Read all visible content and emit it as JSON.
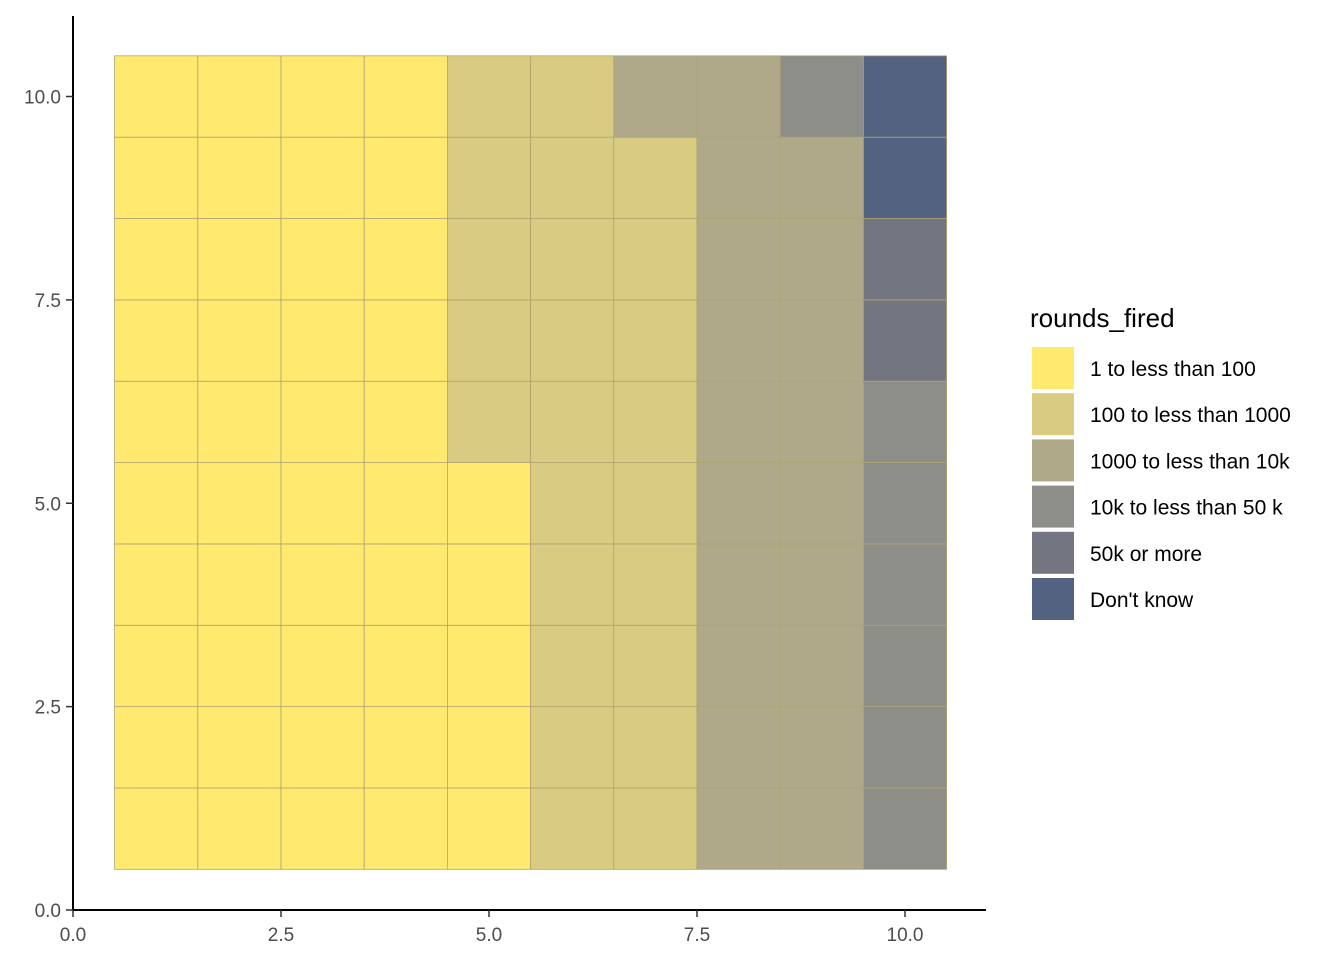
{
  "chart_data": {
    "type": "heatmap",
    "title": "",
    "xlabel": "",
    "ylabel": "",
    "xlim": [
      0,
      11
    ],
    "ylim": [
      0,
      10.8
    ],
    "x_ticks": [
      "0.0",
      "2.5",
      "5.0",
      "7.5",
      "10.0"
    ],
    "y_ticks": [
      "0.0",
      "2.5",
      "5.0",
      "7.5",
      "10.0"
    ],
    "grid": false,
    "legend": {
      "title": "rounds_fired",
      "placement": "right",
      "entries": [
        {
          "label": "1 to less than 100",
          "color": "#FFEA6F"
        },
        {
          "label": "100 to less than 1000",
          "color": "#D9CC82"
        },
        {
          "label": "1000 to less than 10k",
          "color": "#AFA98A"
        },
        {
          "label": "10k to less than 50 k",
          "color": "#8E8E88"
        },
        {
          "label": "50k or more",
          "color": "#737680"
        },
        {
          "label": "Don't know",
          "color": "#536280"
        }
      ]
    },
    "tile_border_color": "#AFA470",
    "rows_bottom_to_top": [
      [
        0,
        0,
        0,
        0,
        0,
        1,
        1,
        2,
        2,
        3
      ],
      [
        0,
        0,
        0,
        0,
        0,
        1,
        1,
        2,
        2,
        3
      ],
      [
        0,
        0,
        0,
        0,
        0,
        1,
        1,
        2,
        2,
        3
      ],
      [
        0,
        0,
        0,
        0,
        0,
        1,
        1,
        2,
        2,
        3
      ],
      [
        0,
        0,
        0,
        0,
        0,
        1,
        1,
        2,
        2,
        3
      ],
      [
        0,
        0,
        0,
        0,
        1,
        1,
        1,
        2,
        2,
        3
      ],
      [
        0,
        0,
        0,
        0,
        1,
        1,
        1,
        2,
        2,
        4
      ],
      [
        0,
        0,
        0,
        0,
        1,
        1,
        1,
        2,
        2,
        4
      ],
      [
        0,
        0,
        0,
        0,
        1,
        1,
        1,
        2,
        2,
        5
      ],
      [
        0,
        0,
        0,
        0,
        1,
        1,
        2,
        2,
        3,
        5
      ]
    ]
  }
}
